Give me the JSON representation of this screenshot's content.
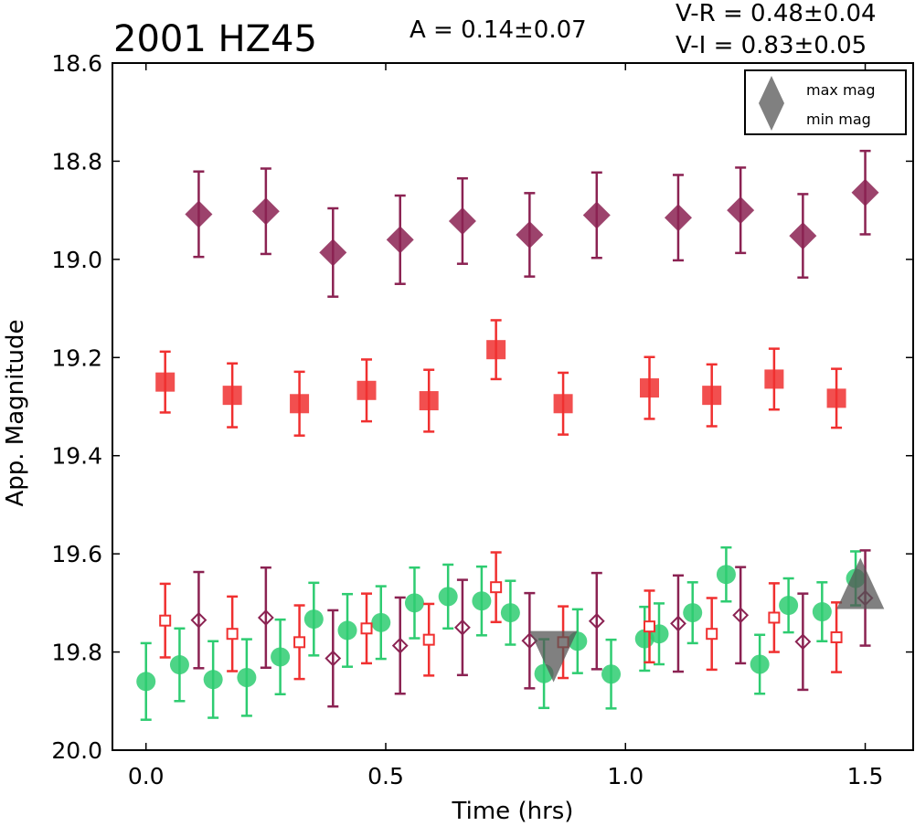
{
  "chart_data": {
    "type": "scatter",
    "title": "2001 HZ45",
    "annotations": {
      "amplitude": "A  = 0.14±0.07",
      "v_r": "V-R = 0.48±0.04",
      "v_i": "V-I  = 0.83±0.05"
    },
    "xlabel": "Time (hrs)",
    "ylabel": "App. Magnitude",
    "xlim": [
      -0.07,
      1.6
    ],
    "ylim": [
      20.0,
      18.6
    ],
    "y_inverted": true,
    "x_ticks": [
      0.0,
      0.5,
      1.0,
      1.5
    ],
    "x_tick_labels": [
      "0.0",
      "0.5",
      "1.0",
      "1.5"
    ],
    "y_ticks": [
      18.6,
      18.8,
      19.0,
      19.2,
      19.4,
      19.6,
      19.8,
      20.0
    ],
    "y_tick_labels": [
      "18.6",
      "18.8",
      "19.0",
      "19.2",
      "19.4",
      "19.6",
      "19.8",
      "20.0"
    ],
    "grid": false,
    "legend": {
      "position": "top-right",
      "entries": [
        {
          "label": "max mag",
          "marker": "triangle-up",
          "color": "#555555"
        },
        {
          "label": "min mag",
          "marker": "triangle-down",
          "color": "#555555"
        }
      ]
    },
    "series": [
      {
        "marker": "diamond-filled",
        "color": "#8b2252",
        "x": [
          0.11,
          0.25,
          0.39,
          0.53,
          0.66,
          0.8,
          0.94,
          1.11,
          1.24,
          1.37,
          1.5
        ],
        "y": [
          18.908,
          18.902,
          18.986,
          18.96,
          18.922,
          18.95,
          18.91,
          18.915,
          18.9,
          18.952,
          18.864
        ],
        "yerr": [
          0.087,
          0.087,
          0.09,
          0.09,
          0.087,
          0.085,
          0.087,
          0.087,
          0.087,
          0.085,
          0.085
        ]
      },
      {
        "marker": "square-filled",
        "color": "#f03030",
        "x": [
          0.04,
          0.18,
          0.32,
          0.46,
          0.59,
          0.73,
          0.87,
          1.05,
          1.18,
          1.31,
          1.44
        ],
        "y": [
          19.25,
          19.277,
          19.294,
          19.267,
          19.288,
          19.184,
          19.294,
          19.262,
          19.277,
          19.244,
          19.283
        ],
        "yerr": [
          0.062,
          0.065,
          0.065,
          0.063,
          0.063,
          0.06,
          0.063,
          0.063,
          0.063,
          0.062,
          0.06
        ]
      },
      {
        "marker": "circle-filled",
        "color": "#2ecc71",
        "x": [
          0.0,
          0.07,
          0.14,
          0.21,
          0.28,
          0.35,
          0.42,
          0.49,
          0.56,
          0.63,
          0.7,
          0.76,
          0.83,
          0.9,
          0.97,
          1.04,
          1.07,
          1.14,
          1.21,
          1.28,
          1.34,
          1.41,
          1.48
        ],
        "y": [
          19.86,
          19.826,
          19.856,
          19.852,
          19.81,
          19.733,
          19.756,
          19.74,
          19.7,
          19.687,
          19.696,
          19.72,
          19.844,
          19.778,
          19.845,
          19.773,
          19.763,
          19.72,
          19.642,
          19.825,
          19.705,
          19.718,
          19.65
        ],
        "yerr": [
          0.078,
          0.074,
          0.078,
          0.078,
          0.076,
          0.074,
          0.074,
          0.074,
          0.072,
          0.065,
          0.07,
          0.065,
          0.07,
          0.065,
          0.07,
          0.065,
          0.062,
          0.062,
          0.055,
          0.06,
          0.055,
          0.06,
          0.055
        ]
      },
      {
        "marker": "diamond-open",
        "color": "#8b2252",
        "x": [
          0.11,
          0.25,
          0.39,
          0.53,
          0.66,
          0.8,
          0.94,
          1.11,
          1.24,
          1.37,
          1.5
        ],
        "y": [
          19.735,
          19.73,
          19.813,
          19.787,
          19.75,
          19.777,
          19.737,
          19.742,
          19.725,
          19.779,
          19.69
        ],
        "yerr": [
          0.098,
          0.102,
          0.098,
          0.098,
          0.097,
          0.097,
          0.098,
          0.098,
          0.098,
          0.098,
          0.097
        ]
      },
      {
        "marker": "square-open",
        "color": "#f03030",
        "x": [
          0.04,
          0.18,
          0.32,
          0.46,
          0.59,
          0.73,
          0.87,
          1.05,
          1.18,
          1.31,
          1.44
        ],
        "y": [
          19.736,
          19.763,
          19.78,
          19.752,
          19.775,
          19.668,
          19.78,
          19.748,
          19.763,
          19.73,
          19.77
        ],
        "yerr": [
          0.075,
          0.076,
          0.075,
          0.071,
          0.073,
          0.071,
          0.073,
          0.073,
          0.073,
          0.07,
          0.071
        ]
      }
    ],
    "extrema": {
      "max_mag": {
        "x": 1.49,
        "y": 19.69
      },
      "min_mag": {
        "x": 0.85,
        "y": 19.8
      }
    }
  }
}
